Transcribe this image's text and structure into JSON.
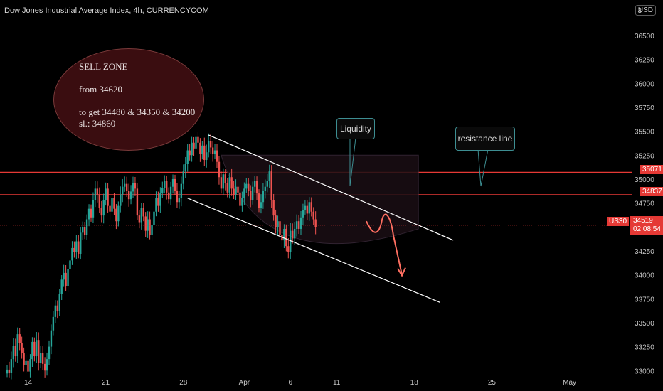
{
  "header": {
    "title": "Dow Jones Industrial Average Index, 4h, CURRENCYCOM",
    "currency_prefix": "3",
    "currency": "USD"
  },
  "annotations": {
    "sell_zone": {
      "line1": "SELL ZONE",
      "line2": "from 34620",
      "line3": "to get  34480 & 34350 & 34200",
      "line4": "sl.: 34860"
    },
    "liquidity_label": "Liquidity",
    "resistance_label": "resistance line"
  },
  "price_tags": {
    "level1": "35071",
    "level2": "34837",
    "symbol": "US30",
    "current": "34519",
    "countdown": "02:08:54"
  },
  "colors": {
    "background": "#000000",
    "up_candle": "#26a69a",
    "down_candle": "#ef5350",
    "level_line": "#e53935",
    "channel": "#ffffff",
    "projection": "#ff6f61"
  },
  "chart_data": {
    "type": "candlestick",
    "ylim": [
      32950,
      36700
    ],
    "y_ticks": [
      33000,
      33250,
      33500,
      33750,
      34000,
      34250,
      34500,
      34750,
      35000,
      35250,
      35500,
      35750,
      36000,
      36250,
      36500
    ],
    "y_tick_labels": [
      "33000",
      "33250",
      "33500",
      "33750",
      "34000",
      "34250",
      "34500",
      "34750",
      "35000",
      "35250",
      "35500",
      "35750",
      "36000",
      "36250",
      "36500"
    ],
    "x_ticks": [
      {
        "label": "14",
        "idx": 10
      },
      {
        "label": "21",
        "idx": 47
      },
      {
        "label": "28",
        "idx": 84
      },
      {
        "label": "Apr",
        "idx": 113
      },
      {
        "label": "6",
        "idx": 135
      },
      {
        "label": "11",
        "idx": 157
      },
      {
        "label": "18",
        "idx": 194
      },
      {
        "label": "25",
        "idx": 231
      },
      {
        "label": "May",
        "idx": 268
      }
    ],
    "horizontal_levels": [
      35071,
      34837
    ],
    "current_price": 34519,
    "candles_close": [
      33010,
      32980,
      33120,
      33260,
      33150,
      33380,
      33290,
      33180,
      33060,
      33100,
      32990,
      33120,
      33300,
      33150,
      33320,
      33080,
      33180,
      33070,
      33000,
      33120,
      33250,
      33420,
      33560,
      33680,
      33620,
      33800,
      33950,
      34020,
      33880,
      34060,
      34150,
      34280,
      34240,
      34350,
      34220,
      34440,
      34500,
      34420,
      34580,
      34690,
      34600,
      34780,
      34900,
      34840,
      34700,
      34620,
      34780,
      34900,
      34720,
      34660,
      34800,
      34690,
      34560,
      34720,
      34840,
      34920,
      34950,
      34880,
      34790,
      34870,
      34960,
      34900,
      34620,
      34550,
      34700,
      34610,
      34460,
      34580,
      34420,
      34520,
      34660,
      34800,
      34720,
      34850,
      34910,
      34980,
      34860,
      34790,
      34920,
      35000,
      34880,
      34760,
      34800,
      34950,
      35080,
      35160,
      35300,
      35250,
      35380,
      35320,
      35440,
      35380,
      35260,
      35350,
      35200,
      35280,
      35400,
      35330,
      35260,
      35300,
      35180,
      35020,
      34900,
      35050,
      34960,
      34860,
      35020,
      34900,
      34840,
      34920,
      34860,
      34720,
      34800,
      34900,
      34950,
      34880,
      34780,
      34920,
      34980,
      34850,
      34700,
      34760,
      34880,
      34920,
      34980,
      35080,
      34780,
      34620,
      34500,
      34560,
      34420,
      34360,
      34480,
      34300,
      34240,
      34460,
      34380,
      34480,
      34560,
      34480,
      34600,
      34680,
      34720,
      34640,
      34760,
      34660,
      34580,
      34500
    ],
    "channel_upper": [
      {
        "idx": 96,
        "price": 35460
      },
      {
        "idx": 195,
        "price": 34480
      }
    ],
    "channel_lower": [
      {
        "idx": 86,
        "price": 34800
      },
      {
        "idx": 194,
        "price": 33750
      }
    ],
    "projection_target": 34000
  }
}
